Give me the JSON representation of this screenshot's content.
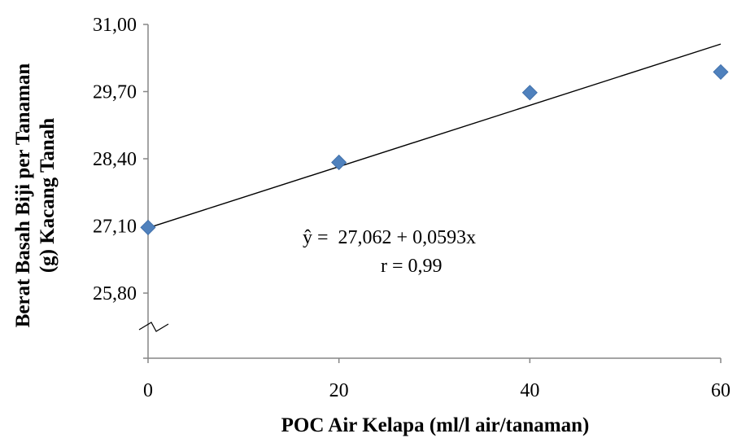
{
  "chart_data": {
    "type": "scatter",
    "title": "",
    "xlabel": "POC Air Kelapa (ml/l air/tanaman)",
    "ylabel_lines": [
      "Berat Basah Biji per Tanaman",
      "(g) Kacang Tanah"
    ],
    "x_ticks": [
      "0",
      "20",
      "40",
      "60"
    ],
    "y_ticks": [
      "25,80",
      "27,10",
      "28,40",
      "29,70",
      "31,00"
    ],
    "y_tick_values": [
      25.8,
      27.1,
      28.4,
      29.7,
      31.0
    ],
    "xlim": [
      0,
      60
    ],
    "ylim": [
      25.8,
      31.0
    ],
    "y_axis_break": true,
    "grid": false,
    "series": [
      {
        "x": [
          0,
          20,
          40,
          60
        ],
        "y": [
          27.07,
          28.33,
          29.68,
          30.08
        ],
        "marker": "diamond",
        "color": "#4F81BD"
      }
    ],
    "trendline": {
      "intercept": 27.062,
      "slope": 0.0593,
      "color": "#000000"
    },
    "annotations": [
      "ŷ =  27,062 + 0,0593x",
      "r = 0,99"
    ]
  }
}
